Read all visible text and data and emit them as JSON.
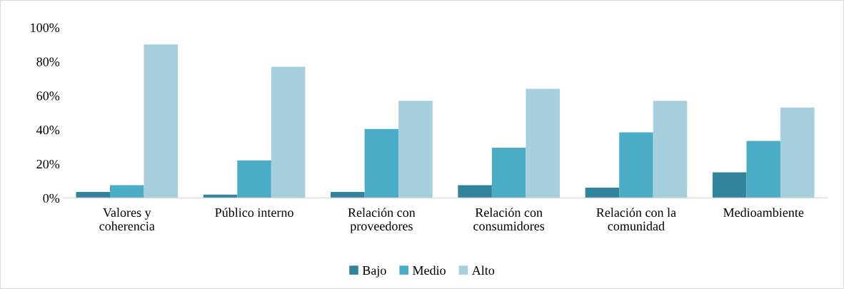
{
  "chart_data": {
    "type": "bar",
    "categories": [
      "Valores y\ncoherencia",
      "Público interno",
      "Relación con\nproveedores",
      "Relación con\nconsumidores",
      "Relación con la\ncomunidad",
      "Medioambiente"
    ],
    "series": [
      {
        "name": "Bajo",
        "color": "#31849b",
        "values": [
          3.5,
          2,
          3.5,
          7.5,
          6,
          15
        ]
      },
      {
        "name": "Medio",
        "color": "#4bacc6",
        "values": [
          7.5,
          22,
          40.5,
          29.5,
          38.5,
          33.5
        ]
      },
      {
        "name": "Alto",
        "color": "#a5cfdd",
        "values": [
          90,
          77,
          57,
          64,
          57,
          53
        ]
      }
    ],
    "ylim": [
      0,
      100
    ],
    "yticks": [
      {
        "value": 0,
        "label": "0%"
      },
      {
        "value": 20,
        "label": "20%"
      },
      {
        "value": 40,
        "label": "40%"
      },
      {
        "value": 60,
        "label": "60%"
      },
      {
        "value": 80,
        "label": "80%"
      },
      {
        "value": 100,
        "label": "100%"
      }
    ],
    "grid": false,
    "legend": "bottom"
  }
}
